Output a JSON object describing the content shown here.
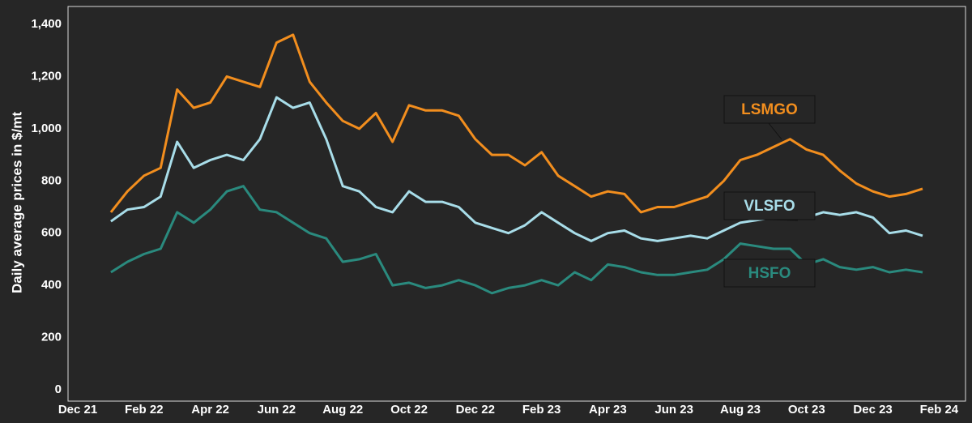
{
  "chart_data": {
    "type": "line",
    "y_label": "Daily average prices in $/mt",
    "categories": [
      "Dec 21",
      null,
      null,
      null,
      "Feb 22",
      null,
      null,
      null,
      "Apr 22",
      null,
      null,
      null,
      "Jun 22",
      null,
      null,
      null,
      "Aug 22",
      null,
      null,
      null,
      "Oct 22",
      null,
      null,
      null,
      "Dec 22",
      null,
      null,
      null,
      "Feb 23",
      null,
      null,
      null,
      "Apr 23",
      null,
      null,
      null,
      "Jun 23",
      null,
      null,
      null,
      "Aug 23",
      null,
      null,
      null,
      "Oct 23",
      null,
      null,
      null,
      "Dec 23",
      null,
      null,
      null,
      "Feb 24"
    ],
    "series": [
      {
        "name": "LSMGO",
        "color": "#f28e1e",
        "values": [
          null,
          null,
          680,
          760,
          820,
          850,
          1150,
          1080,
          1100,
          1200,
          1180,
          1160,
          1330,
          1360,
          1180,
          1100,
          1030,
          1000,
          1060,
          950,
          1090,
          1070,
          1070,
          1050,
          960,
          900,
          900,
          860,
          910,
          820,
          780,
          740,
          760,
          750,
          680,
          700,
          700,
          720,
          740,
          800,
          880,
          900,
          930,
          960,
          920,
          900,
          840,
          790,
          760,
          740,
          750,
          770,
          null
        ]
      },
      {
        "name": "VLSFO",
        "color": "#a8dde9",
        "values": [
          null,
          null,
          645,
          690,
          700,
          740,
          950,
          850,
          880,
          900,
          880,
          960,
          1120,
          1080,
          1100,
          960,
          780,
          760,
          700,
          680,
          760,
          720,
          720,
          700,
          640,
          620,
          600,
          630,
          680,
          640,
          600,
          570,
          600,
          610,
          580,
          570,
          580,
          590,
          580,
          610,
          640,
          650,
          660,
          680,
          660,
          680,
          670,
          680,
          660,
          600,
          610,
          590,
          null
        ]
      },
      {
        "name": "HSFO",
        "color": "#2a8a7e",
        "values": [
          null,
          null,
          450,
          490,
          520,
          540,
          680,
          640,
          690,
          760,
          780,
          690,
          680,
          640,
          600,
          580,
          490,
          500,
          520,
          400,
          410,
          390,
          400,
          420,
          400,
          370,
          390,
          400,
          420,
          400,
          450,
          420,
          480,
          470,
          450,
          440,
          440,
          450,
          460,
          500,
          560,
          550,
          540,
          540,
          480,
          500,
          470,
          460,
          470,
          450,
          460,
          450,
          null
        ]
      }
    ],
    "ylim": [
      0,
      1400
    ],
    "yticks": [
      0,
      200,
      400,
      600,
      800,
      {
        "value": 1000,
        "label": "1,000"
      },
      {
        "value": 1200,
        "label": "1,200"
      },
      {
        "value": 1400,
        "label": "1,400"
      }
    ]
  }
}
